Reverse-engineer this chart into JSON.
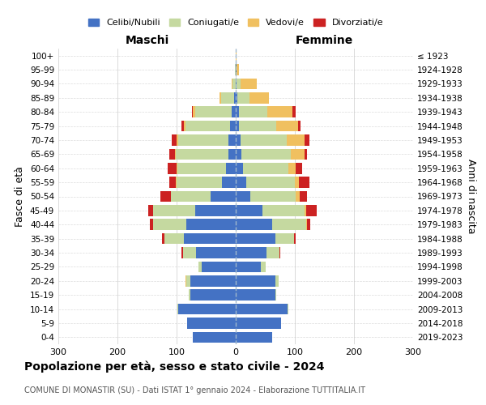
{
  "age_groups": [
    "100+",
    "95-99",
    "90-94",
    "85-89",
    "80-84",
    "75-79",
    "70-74",
    "65-69",
    "60-64",
    "55-59",
    "50-54",
    "45-49",
    "40-44",
    "35-39",
    "30-34",
    "25-29",
    "20-24",
    "15-19",
    "10-14",
    "5-9",
    "0-4"
  ],
  "birth_years": [
    "≤ 1923",
    "1924-1928",
    "1929-1933",
    "1934-1938",
    "1939-1943",
    "1944-1948",
    "1949-1953",
    "1954-1958",
    "1959-1963",
    "1964-1968",
    "1969-1973",
    "1974-1978",
    "1979-1983",
    "1984-1988",
    "1989-1993",
    "1994-1998",
    "1999-2003",
    "2004-2008",
    "2009-2013",
    "2014-2018",
    "2019-2023"
  ],
  "maschi_celibi": [
    0,
    0,
    0,
    3,
    7,
    10,
    12,
    13,
    17,
    23,
    42,
    68,
    83,
    88,
    67,
    57,
    77,
    77,
    97,
    82,
    72
  ],
  "maschi_coniugati": [
    0,
    1,
    5,
    22,
    62,
    75,
    85,
    88,
    82,
    77,
    67,
    72,
    57,
    32,
    22,
    6,
    6,
    2,
    2,
    0,
    0
  ],
  "maschi_vedovi": [
    0,
    0,
    2,
    3,
    3,
    2,
    3,
    2,
    1,
    1,
    0,
    0,
    0,
    0,
    0,
    0,
    2,
    0,
    0,
    0,
    0
  ],
  "maschi_divorziati": [
    0,
    0,
    0,
    0,
    2,
    5,
    8,
    10,
    15,
    12,
    18,
    8,
    5,
    5,
    3,
    0,
    0,
    0,
    0,
    0,
    0
  ],
  "femmine_nubili": [
    0,
    1,
    2,
    3,
    5,
    5,
    8,
    10,
    12,
    18,
    25,
    45,
    62,
    67,
    52,
    42,
    67,
    67,
    87,
    77,
    62
  ],
  "femmine_coniugate": [
    0,
    1,
    6,
    20,
    48,
    63,
    78,
    83,
    77,
    82,
    77,
    72,
    57,
    32,
    22,
    8,
    6,
    2,
    2,
    0,
    0
  ],
  "femmine_vedove": [
    1,
    3,
    28,
    33,
    43,
    37,
    30,
    23,
    13,
    7,
    6,
    2,
    2,
    0,
    0,
    0,
    0,
    0,
    0,
    0,
    0
  ],
  "femmine_divorziate": [
    0,
    0,
    0,
    0,
    5,
    5,
    8,
    5,
    10,
    18,
    12,
    18,
    5,
    2,
    2,
    0,
    0,
    0,
    0,
    0,
    0
  ],
  "color_celibi": "#4472c4",
  "color_coniugati": "#c5d9a0",
  "color_vedovi": "#f0c060",
  "color_divorziati": "#cc2222",
  "title": "Popolazione per età, sesso e stato civile - 2024",
  "subtitle": "COMUNE DI MONASTIR (SU) - Dati ISTAT 1° gennaio 2024 - Elaborazione TUTTITALIA.IT",
  "ylabel_left": "Fasce di età",
  "ylabel_right": "Anni di nascita",
  "xlabel_left": "Maschi",
  "xlabel_right": "Femmine",
  "xlim": 300,
  "bg_color": "#ffffff",
  "grid_color": "#cccccc"
}
